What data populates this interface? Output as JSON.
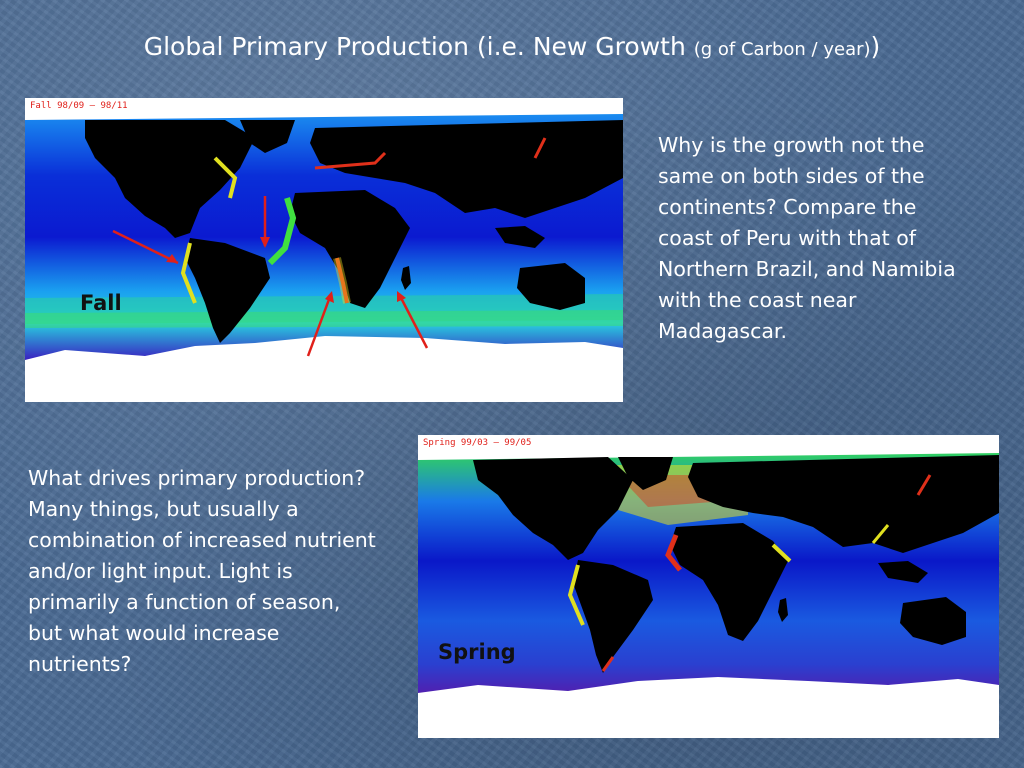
{
  "slide": {
    "title_main": "Global Primary Production (i.e. New Growth ",
    "title_unit": "(g of Carbon / year)",
    "title_close": ")"
  },
  "fall_map": {
    "caption": "Fall 98/09 – 98/11",
    "label": "Fall",
    "arrow_color": "#e0201a"
  },
  "spring_map": {
    "caption": "Spring 99/03 – 99/05",
    "label": "Spring"
  },
  "question_1": {
    "lines": [
      "Why is the growth not the",
      "same on both sides of the",
      "continents? Compare the",
      "coast of Peru with that of",
      "Northern Brazil, and Namibia",
      "with the coast near",
      "Madagascar."
    ]
  },
  "question_2": {
    "lines": [
      "What drives primary production?",
      "Many things, but usually a",
      "combination of increased nutrient",
      "and/or light input. Light is",
      "primarily a function of season,",
      "but what would increase",
      "nutrients?"
    ]
  },
  "colors": {
    "background": "#4a6a93",
    "ocean_deep": "#0a1fd6",
    "ocean_mid": "#19a6f2",
    "productive": "#2fe05a",
    "high": "#f0e020",
    "very_high": "#e0301a",
    "land": "#000000",
    "ice": "#ffffff"
  }
}
